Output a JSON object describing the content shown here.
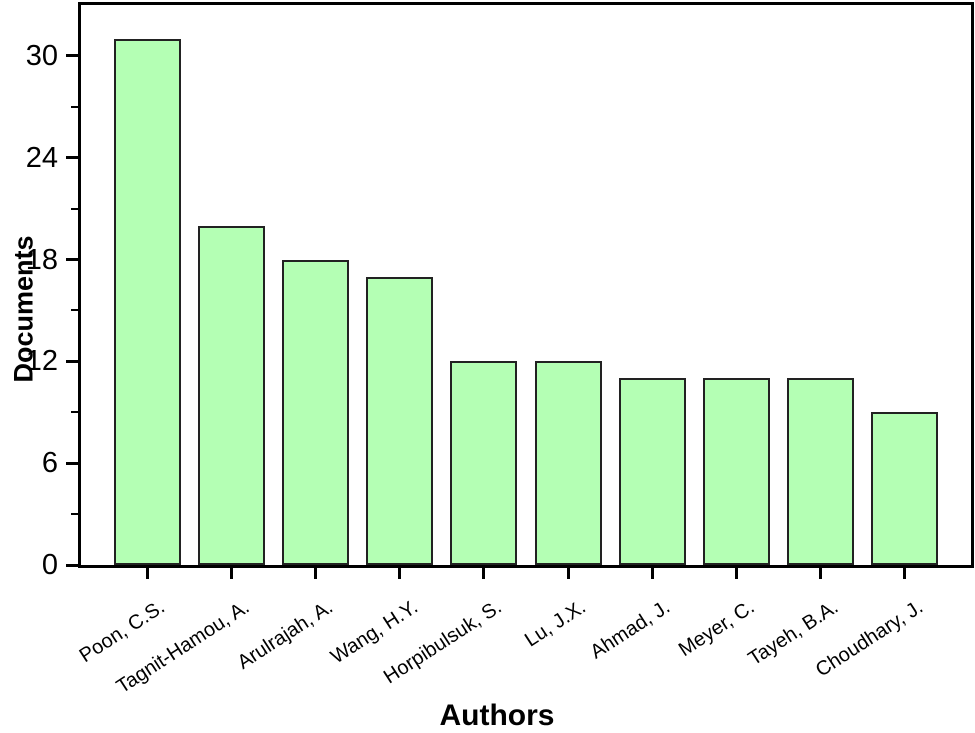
{
  "chart_data": {
    "type": "bar",
    "title": "",
    "xlabel": "Authors",
    "ylabel": "Documents",
    "categories": [
      "Poon, C.S.",
      "Tagnit-Hamou, A.",
      "Arulrajah, A.",
      "Wang, H.Y.",
      "Horpibulsuk, S.",
      "Lu, J.X.",
      "Ahmad, J.",
      "Meyer, C.",
      "Tayeh, B.A.",
      "Choudhary, J."
    ],
    "values": [
      31,
      20,
      18,
      17,
      12,
      12,
      11,
      11,
      11,
      9
    ],
    "ylim": [
      0,
      33
    ],
    "y_major_ticks": [
      0,
      6,
      12,
      18,
      24,
      30
    ],
    "y_minor_ticks": [
      3,
      9,
      15,
      21,
      27
    ],
    "grid": false,
    "legend": "none",
    "x_label_rotation_deg": -33,
    "colors": {
      "bar_fill": "#b4ffb4",
      "bar_border": "#222222",
      "axis": "#000000",
      "background": "#ffffff",
      "text": "#000000"
    }
  }
}
